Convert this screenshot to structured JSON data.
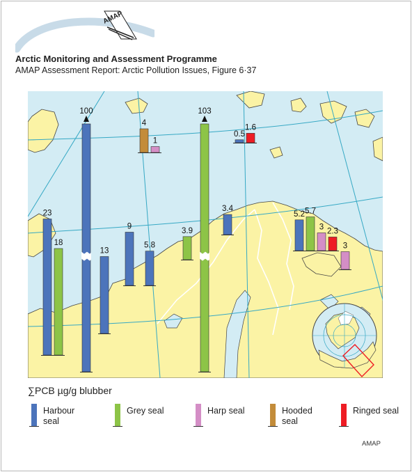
{
  "logo_text": "AMAP",
  "header": {
    "title": "Arctic Monitoring and Assessment Programme",
    "subtitle": "AMAP Assessment Report: Arctic Pollution Issues, Figure 6·37"
  },
  "legend": {
    "title": "∑PCB µg/g blubber",
    "items": [
      {
        "label": "Harbour seal",
        "color": "#4c74bb"
      },
      {
        "label": "Grey seal",
        "color": "#8dc447"
      },
      {
        "label": "Harp seal",
        "color": "#d48ec6"
      },
      {
        "label": "Hooded seal",
        "color": "#c38c3a"
      },
      {
        "label": "Ringed seal",
        "color": "#ee1c24"
      }
    ]
  },
  "footer": "AMAP",
  "colors": {
    "sea": "#d3ecf4",
    "land": "#fbf3a5",
    "border": "#ffffff",
    "grid": "#35a8c4",
    "coast": "#444444"
  },
  "chart_data": {
    "type": "bar",
    "title": "",
    "unit": "∑PCB µg/g blubber",
    "series": [
      {
        "name": "Harbour seal",
        "color": "#4c74bb"
      },
      {
        "name": "Grey seal",
        "color": "#8dc447"
      },
      {
        "name": "Harp seal",
        "color": "#d48ec6"
      },
      {
        "name": "Hooded seal",
        "color": "#c38c3a"
      },
      {
        "name": "Ringed seal",
        "color": "#ee1c24"
      }
    ],
    "groups": [
      {
        "bars": [
          {
            "species": "Harbour seal",
            "value": 23,
            "label": "23"
          },
          {
            "species": "Grey seal",
            "value": 18,
            "label": "18"
          }
        ]
      },
      {
        "bars": [
          {
            "species": "Harbour seal",
            "value": 100,
            "label": "100",
            "broken": true
          }
        ]
      },
      {
        "bars": [
          {
            "species": "Hooded seal",
            "value": 4,
            "label": "4"
          },
          {
            "species": "Harp seal",
            "value": 1,
            "label": "1"
          }
        ]
      },
      {
        "bars": [
          {
            "species": "Harbour seal",
            "value": 13,
            "label": "13"
          }
        ]
      },
      {
        "bars": [
          {
            "species": "Harbour seal",
            "value": 9,
            "label": "9"
          }
        ]
      },
      {
        "bars": [
          {
            "species": "Harbour seal",
            "value": 5.8,
            "label": "5.8"
          }
        ]
      },
      {
        "bars": [
          {
            "species": "Grey seal",
            "value": 3.9,
            "label": "3.9"
          }
        ]
      },
      {
        "bars": [
          {
            "species": "Grey seal",
            "value": 103,
            "label": "103",
            "broken": true
          }
        ]
      },
      {
        "bars": [
          {
            "species": "Harbour seal",
            "value": 0.5,
            "label": "0.5"
          },
          {
            "species": "Ringed seal",
            "value": 1.6,
            "label": "1.6"
          }
        ]
      },
      {
        "bars": [
          {
            "species": "Harbour seal",
            "value": 3.4,
            "label": "3.4"
          }
        ]
      },
      {
        "bars": [
          {
            "species": "Harbour seal",
            "value": 5.2,
            "label": "5.2"
          },
          {
            "species": "Grey seal",
            "value": 5.7,
            "label": "5.7"
          },
          {
            "species": "Harp seal",
            "value": 3,
            "label": "3"
          },
          {
            "species": "Ringed seal",
            "value": 2.3,
            "label": "2.3"
          }
        ]
      },
      {
        "bars": [
          {
            "species": "Harp seal",
            "value": 3,
            "label": "3"
          }
        ]
      }
    ]
  }
}
